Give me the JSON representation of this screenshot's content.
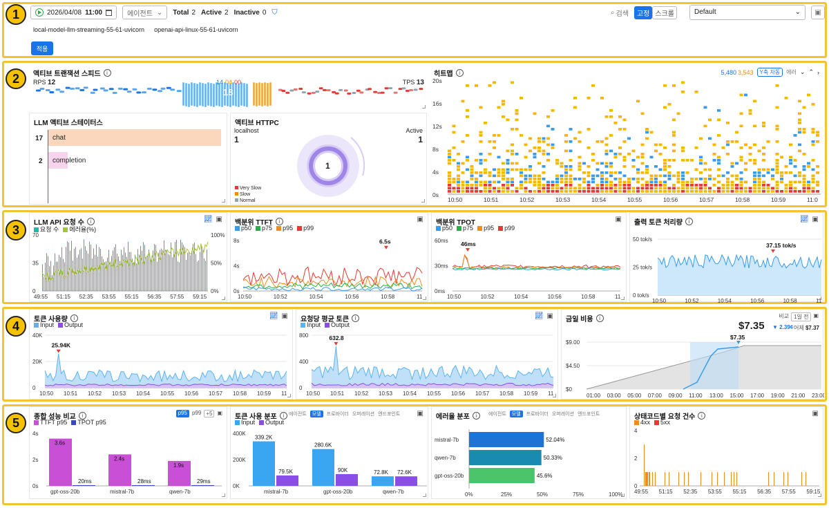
{
  "badges": [
    "1",
    "2",
    "3",
    "4",
    "5"
  ],
  "toolbar": {
    "play_icon": "play-circle-icon",
    "date": "2026/04/08",
    "time": "11:00",
    "calendar_icon": "calendar-icon",
    "agent_select": "에이전트",
    "total_label": "Total",
    "total": "2",
    "active_label": "Active",
    "active": "2",
    "inactive_label": "Inactive",
    "inactive": "0",
    "search_label": "검색",
    "fixed_label": "고정",
    "scroll_label": "스크롤",
    "preset": "Default",
    "apply": "적용",
    "instances": [
      "local-model-llm-streaming-55-61-uvicorn",
      "openai-api-linux-55-61-uvicorn"
    ]
  },
  "speed": {
    "title": "액티브 트랜잭션 스피드",
    "rps_label": "RPS",
    "rps": "12",
    "tps_label": "TPS",
    "tps": "13",
    "n1": "14",
    "n2": "04",
    "n3": "00",
    "center": "18"
  },
  "llm_status": {
    "title": "LLM 액티브 스테이터스",
    "rows": [
      {
        "count": "17",
        "label": "chat",
        "value": 17
      },
      {
        "count": "2",
        "label": "completion",
        "value": 2
      }
    ]
  },
  "httpc": {
    "title": "액티브 HTTPC",
    "host": "localhost",
    "host_val": "1",
    "active_label": "Active",
    "active_val": "1",
    "center": "1",
    "legend": [
      "Very Slow",
      "Slow",
      "Normal"
    ],
    "legend_colors": [
      "#e53935",
      "#fb8c00",
      "#90a4ae"
    ]
  },
  "heatmap": {
    "title": "히트맵",
    "count_blue": "5,480",
    "count_orange": "3,543",
    "yaxis_btn": "Y축 자동",
    "error_label": "에러",
    "yticks": [
      "20s",
      "16s",
      "12s",
      "8s",
      "4s",
      "0s"
    ],
    "xticks": [
      "10:50",
      "10:51",
      "10:52",
      "10:53",
      "10:54",
      "10:55",
      "10:56",
      "10:57",
      "10:58",
      "10:59",
      "11:0"
    ]
  },
  "req": {
    "title": "LLM API 요청 수",
    "legend": [
      "요청 수",
      "에러율(%)"
    ],
    "colors": [
      "#26b5a8",
      "#a5c832"
    ],
    "yleft": [
      "70",
      "35",
      "0"
    ],
    "yright": [
      "100%",
      "50%",
      "0%"
    ],
    "xticks": [
      "49:55",
      "51:15",
      "52:35",
      "53:55",
      "55:15",
      "56:35",
      "57:55",
      "59:15"
    ]
  },
  "ttft": {
    "title": "백분위 TTFT",
    "legend": [
      "p50",
      "p75",
      "p95",
      "p99"
    ],
    "colors": [
      "#3a9ce8",
      "#22b04a",
      "#f08c1c",
      "#e53935"
    ],
    "yticks": [
      "8s",
      "4s",
      "0s"
    ],
    "xticks": [
      "10:50",
      "10:52",
      "10:54",
      "10:56",
      "10:58",
      "11"
    ],
    "peak": "6.5s"
  },
  "tpot": {
    "title": "백분위 TPOT",
    "legend": [
      "p50",
      "p75",
      "p95",
      "p99"
    ],
    "yticks": [
      "60ms",
      "30ms",
      "0ms"
    ],
    "xticks": [
      "10:50",
      "10:52",
      "10:54",
      "10:56",
      "10:58",
      "11"
    ],
    "peak": "46ms"
  },
  "throughput": {
    "title": "출력 토큰 처리량",
    "yticks": [
      "50 tok/s",
      "25 tok/s",
      "0 tok/s"
    ],
    "xticks": [
      "10:50",
      "10:52",
      "10:54",
      "10:56",
      "10:58",
      "11"
    ],
    "peak": "37.15 tok/s"
  },
  "tokens": {
    "title": "토큰 사용량",
    "legend": [
      "Input",
      "Output"
    ],
    "colors": [
      "#5cb3f0",
      "#8a4de8"
    ],
    "yticks": [
      "40K",
      "20K",
      "0"
    ],
    "xticks": [
      "10:50",
      "10:51",
      "10:52",
      "10:53",
      "10:54",
      "10:55",
      "10:56",
      "10:57",
      "10:58",
      "10:59",
      "11"
    ],
    "peak": "25.94K"
  },
  "avgtok": {
    "title": "요청당 평균 토큰",
    "legend": [
      "Input",
      "Output"
    ],
    "yticks": [
      "800",
      "400",
      "0"
    ],
    "xticks": [
      "10:50",
      "10:51",
      "10:52",
      "10:53",
      "10:54",
      "10:55",
      "10:56",
      "10:57",
      "10:58",
      "10:59",
      "11"
    ],
    "peak": "632.8"
  },
  "cost": {
    "title": "금일 비용",
    "compare": "비교",
    "range": "1일 전",
    "amount": "$7.35",
    "delta": "▼ 2.39¢",
    "yesterday_label": "어제",
    "yesterday": "$7.37",
    "yticks": [
      "$9.00",
      "$4.50",
      "$0"
    ],
    "xticks": [
      "01:00",
      "03:00",
      "05:00",
      "07:00",
      "09:00",
      "11:00",
      "13:00",
      "15:00",
      "17:00",
      "19:00",
      "21:00",
      "23:00"
    ],
    "peak": "$7.35"
  },
  "perf": {
    "title": "종합 성능 비교",
    "tabs": [
      "p95",
      "p99",
      "+5"
    ],
    "legend": [
      "TTFT p95",
      "TPOT p95"
    ],
    "colors": [
      "#c94fd6",
      "#3848c8"
    ],
    "yticks": [
      "4s",
      "2s",
      "0s"
    ],
    "chart_data": {
      "type": "bar",
      "categories": [
        "gpt-oss-20b",
        "mistral-7b",
        "qwen-7b"
      ],
      "series": [
        {
          "name": "TTFT p95",
          "values": [
            3.6,
            2.4,
            1.9
          ],
          "labels": [
            "3.6s",
            "2.4s",
            "1.9s"
          ]
        },
        {
          "name": "TPOT p95",
          "values": [
            0.02,
            0.028,
            0.029
          ],
          "labels": [
            "20ms",
            "28ms",
            "29ms"
          ]
        }
      ],
      "ylim": [
        0,
        4
      ]
    }
  },
  "tokdist": {
    "title": "토큰 사용 분포",
    "tabs": [
      "에이전트",
      "모델",
      "프로바이더",
      "오퍼레이션",
      "엔드포인트"
    ],
    "legend": [
      "Input",
      "Output"
    ],
    "yticks": [
      "400K",
      "200K",
      "0K"
    ],
    "chart_data": {
      "type": "bar",
      "categories": [
        "mistral-7b",
        "gpt-oss-20b",
        "qwen-7b"
      ],
      "series": [
        {
          "name": "Input",
          "values": [
            339.2,
            280.6,
            72.8
          ],
          "labels": [
            "339.2K",
            "280.6K",
            "72.8K"
          ]
        },
        {
          "name": "Output",
          "values": [
            79.5,
            90,
            72.6
          ],
          "labels": [
            "79.5K",
            "90K",
            "72.6K"
          ]
        }
      ],
      "ylim": [
        0,
        400
      ]
    }
  },
  "errdist": {
    "title": "에러율 분포",
    "tabs": [
      "에이전트",
      "모델",
      "프로바이더",
      "오퍼레이션",
      "엔드포인트"
    ],
    "xticks": [
      "0%",
      "25%",
      "50%",
      "75%",
      "100%"
    ],
    "chart_data": {
      "type": "bar",
      "categories": [
        "mistral-7b",
        "qwen-7b",
        "gpt-oss-20b"
      ],
      "values": [
        52.04,
        50.33,
        45.6
      ],
      "labels": [
        "52.04%",
        "50.33%",
        "45.6%"
      ],
      "colors": [
        "#1e74d6",
        "#1a8bb0",
        "#4bc46a"
      ],
      "xlim": [
        0,
        100
      ]
    }
  },
  "status": {
    "title": "상태코드별 요청 건수",
    "legend": [
      "4xx",
      "5xx"
    ],
    "colors": [
      "#f08c1c",
      "#e53935"
    ],
    "yticks": [
      "4",
      "2",
      "0"
    ],
    "xticks": [
      "49:55",
      "51:15",
      "52:35",
      "53:55",
      "55:15",
      "56:35",
      "57:55",
      "59:15"
    ]
  }
}
